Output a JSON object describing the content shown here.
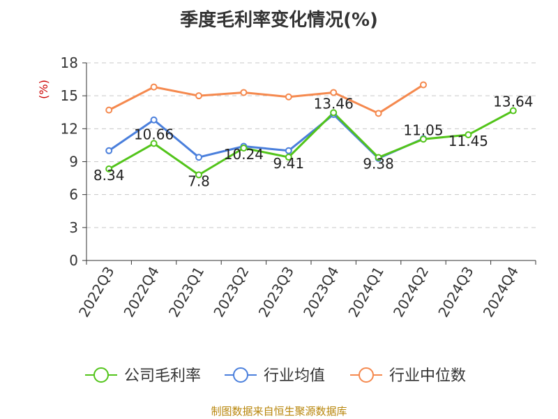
{
  "title": "季度毛利率变化情况(%)",
  "source": "制图数据来自恒生聚源数据库",
  "chart_data": {
    "type": "line",
    "title": "季度毛利率变化情况(%)",
    "unit": "(%)",
    "ylim": [
      0,
      18
    ],
    "yticks": [
      0,
      3,
      6,
      9,
      12,
      15,
      18
    ],
    "categories": [
      "2022Q3",
      "2022Q4",
      "2023Q1",
      "2023Q2",
      "2023Q3",
      "2023Q4",
      "2024Q1",
      "2024Q2",
      "2024Q3",
      "2024Q4"
    ],
    "grid": true,
    "legend_position": "bottom",
    "series": [
      {
        "name": "公司毛利率",
        "color": "#52c41a",
        "values": [
          8.34,
          10.66,
          7.8,
          10.24,
          9.41,
          13.46,
          9.38,
          11.05,
          11.45,
          13.64
        ],
        "labels": [
          "8.34",
          "10.66",
          "7.8",
          "10.24",
          "9.41",
          "13.46",
          "9.38",
          "11.05",
          "11.45",
          "13.64"
        ]
      },
      {
        "name": "行业均值",
        "color": "#4a7fdc",
        "values": [
          10.0,
          12.8,
          9.4,
          10.4,
          10.0,
          13.3,
          9.3,
          11.1,
          null,
          null
        ]
      },
      {
        "name": "行业中位数",
        "color": "#f5894e",
        "values": [
          13.7,
          15.8,
          15.0,
          15.3,
          14.9,
          15.3,
          13.4,
          16.0,
          null,
          null
        ]
      }
    ]
  }
}
